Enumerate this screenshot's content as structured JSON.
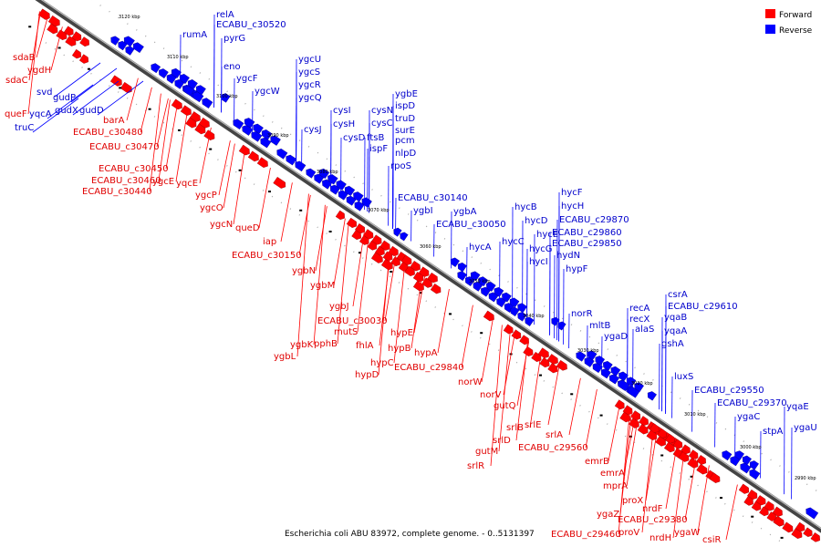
{
  "caption": "Escherichia coli ABU 83972, complete genome. - 0..5131397",
  "legend": {
    "forward_label": "Forward",
    "reverse_label": "Reverse",
    "forward_color": "#ff0000",
    "reverse_color": "#0000ff"
  },
  "ticks": [
    "3120 kbp",
    "3110 kbp",
    "3100 kbp",
    "3090 kbp",
    "3080 kbp",
    "3070 kbp",
    "3060 kbp",
    "3050 kbp",
    "3040 kbp",
    "3030 kbp",
    "3020 kbp",
    "3010 kbp",
    "3000 kbp",
    "2990 kbp"
  ],
  "reverse_labels": [
    "relA",
    "ECABU_c30520",
    "rumA",
    "pyrG",
    "eno",
    "ygcF",
    "ygcU",
    "ygcS",
    "ygcW",
    "ygcR",
    "ygcQ",
    "cysJ",
    "cysI",
    "cysH",
    "cysD",
    "ygbE",
    "ispD",
    "cysN",
    "cysC",
    "ftsB",
    "truD",
    "surE",
    "ispF",
    "pcm",
    "nlpD",
    "rpoS",
    "ECABU_c30140",
    "ygbI",
    "ygbA",
    "hycB",
    "ECABU_c30050",
    "hycF",
    "hycH",
    "hycD",
    "ECABU_c29870",
    "hycE",
    "ECABU_c29860",
    "hycA",
    "hycC",
    "hycG",
    "ECABU_c29850",
    "hycI",
    "hydN",
    "hypF",
    "norR",
    "mltB",
    "recA",
    "csrA",
    "recX",
    "ECABU_c29610",
    "ygaD",
    "alaS",
    "yqaB",
    "yqaA",
    "gshA",
    "luxS",
    "ECABU_c29550",
    "ECABU_c29370",
    "yqaE",
    "ygaC",
    "stpA",
    "ygaU",
    "gudP",
    "gudX",
    "gudD",
    "svd",
    "yqcA",
    "truC"
  ],
  "forward_labels": [
    "sdaB",
    "ygdH",
    "sdaC",
    "queF",
    "barA",
    "ECABU_c30480",
    "ECABU_c30470",
    "ECABU_c30450",
    "ECABU_c30460",
    "ygcE",
    "yqcE",
    "ECABU_c30440",
    "ygcP",
    "ygcO",
    "ygcN",
    "queD",
    "iap",
    "ECABU_c30150",
    "ygbN",
    "ygbM",
    "ygbJ",
    "ECABU_c30030",
    "mutS",
    "pphB",
    "ygbK",
    "ygbL",
    "fhlA",
    "hypE",
    "hypB",
    "hypC",
    "hypA",
    "hypD",
    "ECABU_c29840",
    "norW",
    "norV",
    "gutQ",
    "srlB",
    "srlE",
    "srlA",
    "srlD",
    "gutM",
    "ECABU_c29560",
    "srlR",
    "emrB",
    "emrA",
    "mprA",
    "proX",
    "ygaZ",
    "nrdF",
    "ECABU_c29380",
    "proV",
    "nrdH",
    "ECABU_c29460",
    "ygaW",
    "csiR"
  ]
}
